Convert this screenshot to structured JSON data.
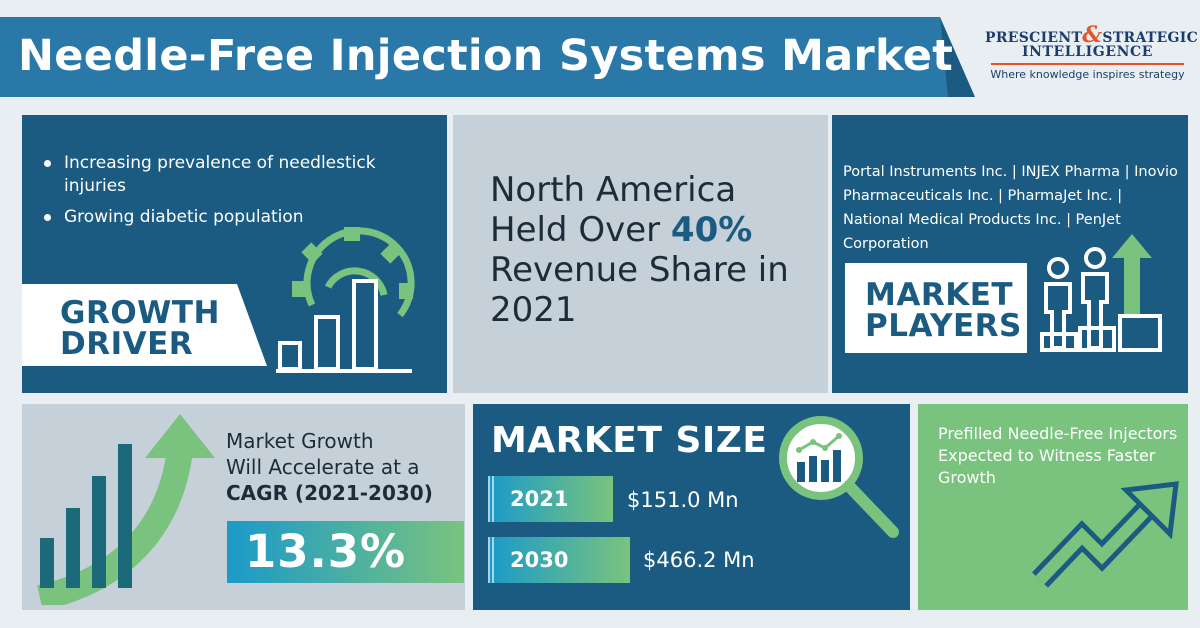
{
  "header": {
    "title": "Needle-Free Injection Systems Market",
    "logo": {
      "line1_a": "PRESCIENT",
      "line1_amp": "&",
      "line1_b": "STRATEGIC",
      "line2": "INTELLIGENCE",
      "tagline": "Where knowledge inspires strategy"
    }
  },
  "growth_driver": {
    "bullets": [
      "Increasing prevalence of needlestick injuries",
      "Growing diabetic population"
    ],
    "label_line1": "GROWTH",
    "label_line2": "DRIVER",
    "icon": "gear-bar-chart-icon"
  },
  "regional_share": {
    "text_before": "North America Held Over ",
    "highlight": "40%",
    "text_after": " Revenue Share in 2021"
  },
  "market_players": {
    "players_text": "Portal Instruments Inc. | INJEX Pharma | Inovio Pharmaceuticals Inc. | PharmaJet Inc. | National Medical Products Inc. | PenJet Corporation",
    "label_line1": "MARKET",
    "label_line2": "PLAYERS",
    "icon": "people-podium-icon"
  },
  "cagr": {
    "line1": "Market Growth",
    "line2": "Will Accelerate at a",
    "line3": "CAGR (2021-2030)",
    "value": "13.3%",
    "icon": "rising-bars-arrow-icon"
  },
  "market_size": {
    "title": "MARKET SIZE",
    "rows": [
      {
        "year": "2021",
        "value": "$151.0 Mn"
      },
      {
        "year": "2030",
        "value": "$466.2 Mn"
      }
    ],
    "icon": "magnifier-chart-icon"
  },
  "prefilled": {
    "text": "Prefilled Needle-Free Injectors Expected to Witness Faster Growth",
    "icon": "trend-up-arrow-icon"
  },
  "colors": {
    "navy": "#1b5b82",
    "grey_panel": "#c6d0d8",
    "green": "#79c37e",
    "blue_accent": "#1a9ac9",
    "logo_orange": "#e3562a"
  }
}
